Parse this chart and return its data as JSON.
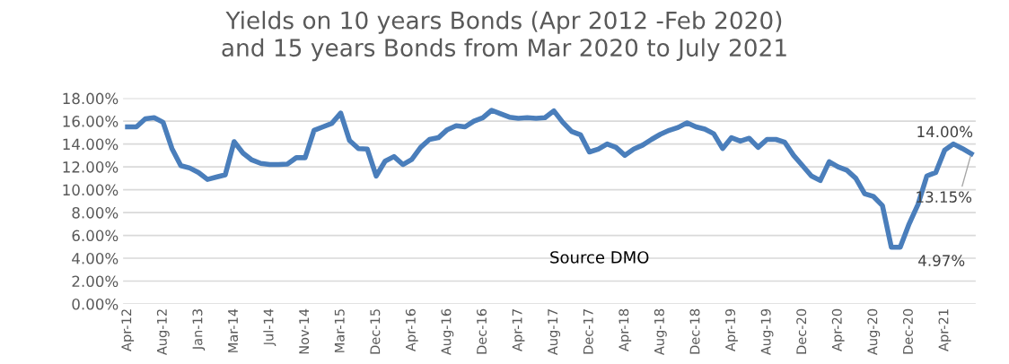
{
  "chart_data": {
    "type": "line",
    "title": "Yields on 10 years Bonds (Apr 2012 -Feb 2020)\nand 15 years Bonds from Mar 2020 to July 2021",
    "categories": [
      "Apr-12",
      null,
      null,
      null,
      "Aug-12",
      null,
      null,
      null,
      "Jan-13",
      null,
      null,
      null,
      "Mar-14",
      null,
      null,
      null,
      "Jul-14",
      null,
      null,
      null,
      "Nov-14",
      null,
      null,
      null,
      "Mar-15",
      null,
      null,
      null,
      "Dec-15",
      null,
      null,
      null,
      "Apr-16",
      null,
      null,
      null,
      "Aug-16",
      null,
      null,
      null,
      "Dec-16",
      null,
      null,
      null,
      "Apr-17",
      null,
      null,
      null,
      "Aug-17",
      null,
      null,
      null,
      "Dec-17",
      null,
      null,
      null,
      "Apr-18",
      null,
      null,
      null,
      "Aug-18",
      null,
      null,
      null,
      "Dec-18",
      null,
      null,
      null,
      "Apr-19",
      null,
      null,
      null,
      "Aug-19",
      null,
      null,
      null,
      "Dec-20",
      null,
      null,
      null,
      "Apr-20",
      null,
      null,
      null,
      "Aug-20",
      null,
      null,
      null,
      "Dec-20",
      null,
      null,
      null,
      "Apr-21",
      null,
      null,
      null
    ],
    "series": [
      {
        "color": "#4a7ebb",
        "values": [
          15.5,
          15.5,
          16.2,
          16.3,
          15.9,
          13.6,
          12.1,
          11.9,
          11.5,
          10.9,
          11.1,
          11.3,
          14.2,
          13.2,
          12.6,
          12.3,
          12.2,
          12.2,
          12.25,
          12.8,
          12.8,
          15.2,
          15.5,
          15.8,
          16.7,
          14.3,
          13.6,
          13.55,
          11.2,
          12.5,
          12.9,
          12.2,
          12.65,
          13.7,
          14.4,
          14.55,
          15.25,
          15.6,
          15.5,
          16.0,
          16.3,
          16.95,
          16.65,
          16.35,
          16.25,
          16.3,
          16.25,
          16.3,
          16.9,
          15.9,
          15.1,
          14.8,
          13.3,
          13.55,
          14.0,
          13.7,
          13.0,
          13.55,
          13.9,
          14.4,
          14.85,
          15.2,
          15.45,
          15.85,
          15.5,
          15.3,
          14.9,
          13.6,
          14.55,
          14.25,
          14.5,
          13.7,
          14.4,
          14.4,
          14.15,
          13.0,
          12.1,
          11.2,
          10.8,
          12.45,
          12.0,
          11.7,
          11.0,
          9.65,
          9.4,
          8.6,
          4.97,
          4.97,
          7.0,
          8.7,
          11.2,
          11.5,
          13.45,
          14.0,
          13.6,
          13.15
        ],
        "value_labels": [
          null,
          null,
          null,
          null,
          null,
          null,
          null,
          null,
          null,
          null,
          null,
          null,
          null,
          null,
          null,
          null,
          null,
          null,
          null,
          null,
          null,
          null,
          null,
          null,
          null,
          null,
          null,
          null,
          null,
          null,
          null,
          null,
          null,
          null,
          null,
          null,
          null,
          null,
          null,
          null,
          null,
          null,
          null,
          null,
          null,
          null,
          null,
          null,
          null,
          null,
          null,
          null,
          null,
          null,
          null,
          null,
          null,
          null,
          null,
          null,
          null,
          null,
          null,
          null,
          null,
          null,
          null,
          null,
          null,
          null,
          null,
          null,
          null,
          null,
          null,
          null,
          null,
          null,
          null,
          null,
          null,
          null,
          null,
          null,
          null,
          null,
          null,
          "4.97%",
          null,
          null,
          null,
          null,
          null,
          "14.00%",
          null,
          "13.15%"
        ]
      }
    ],
    "ylim": [
      0,
      18
    ],
    "yticks": [
      {
        "value": 0,
        "label": "0.00%"
      },
      {
        "value": 2,
        "label": "2.00%"
      },
      {
        "value": 4,
        "label": "4.00%"
      },
      {
        "value": 6,
        "label": "6.00%"
      },
      {
        "value": 8,
        "label": "8.00%"
      },
      {
        "value": 10,
        "label": "10.00%"
      },
      {
        "value": 12,
        "label": "12.00%"
      },
      {
        "value": 14,
        "label": "14.00%"
      },
      {
        "value": 16,
        "label": "16.00%"
      },
      {
        "value": 18,
        "label": "18.00%"
      }
    ],
    "grid": "y",
    "marker": "none",
    "line_style": "solid",
    "annotations": [
      "Source DMO"
    ]
  }
}
